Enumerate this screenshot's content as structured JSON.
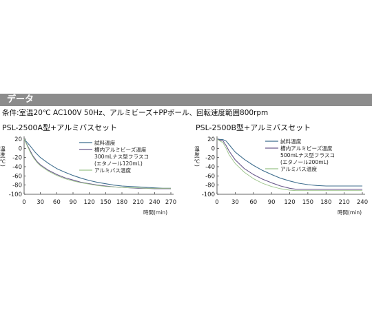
{
  "header": {
    "title": "データ"
  },
  "conditions_text": "条件:室温20℃ AC100V 50Hz、アルミビーズ+PPボール、回転速度範囲800rpm",
  "colors": {
    "header_bar": "#8c8c8c",
    "sample_temp": "#3f6e8e",
    "bead_temp": "#6b5a8c",
    "bath_temp": "#9bc489"
  },
  "chart_data": [
    {
      "type": "line",
      "title": "PSL-2500A型+アルミバスセット",
      "xlabel": "時間(min)",
      "ylabel": "温度(℃)",
      "xlim": [
        0,
        270
      ],
      "ylim": [
        -100,
        20
      ],
      "x_ticks": [
        0,
        30,
        60,
        90,
        120,
        150,
        180,
        210,
        240,
        270
      ],
      "y_ticks": [
        20,
        0,
        -20,
        -40,
        -60,
        -80,
        -100
      ],
      "grid": false,
      "legend_position": "top-right",
      "series": [
        {
          "name": "試料温度",
          "color_key": "sample_temp",
          "points": [
            [
              0,
              20
            ],
            [
              10,
              7
            ],
            [
              20,
              -8
            ],
            [
              30,
              -20
            ],
            [
              45,
              -33
            ],
            [
              60,
              -44
            ],
            [
              75,
              -52
            ],
            [
              90,
              -59
            ],
            [
              105,
              -65
            ],
            [
              120,
              -70
            ],
            [
              135,
              -74
            ],
            [
              150,
              -77
            ],
            [
              165,
              -80
            ],
            [
              180,
              -82
            ],
            [
              195,
              -83
            ],
            [
              210,
              -84
            ],
            [
              225,
              -85
            ],
            [
              240,
              -86
            ],
            [
              255,
              -87
            ],
            [
              270,
              -87
            ]
          ]
        },
        {
          "name": "槽内アルミビーズ温度",
          "color_key": "bead_temp",
          "points": [
            [
              0,
              20
            ],
            [
              8,
              2
            ],
            [
              16,
              -16
            ],
            [
              24,
              -29
            ],
            [
              30,
              -36
            ],
            [
              45,
              -48
            ],
            [
              60,
              -57
            ],
            [
              75,
              -64
            ],
            [
              90,
              -69
            ],
            [
              105,
              -74
            ],
            [
              120,
              -77
            ],
            [
              135,
              -80
            ],
            [
              150,
              -82
            ],
            [
              165,
              -84
            ],
            [
              180,
              -85
            ],
            [
              195,
              -86
            ],
            [
              210,
              -87
            ],
            [
              225,
              -87
            ],
            [
              240,
              -88
            ],
            [
              255,
              -88
            ],
            [
              270,
              -88
            ]
          ]
        },
        {
          "name": "アルミバス温度",
          "color_key": "bath_temp",
          "points": [
            [
              0,
              20
            ],
            [
              6,
              5
            ],
            [
              12,
              -10
            ],
            [
              18,
              -22
            ],
            [
              24,
              -31
            ],
            [
              30,
              -38
            ],
            [
              45,
              -50
            ],
            [
              60,
              -59
            ],
            [
              75,
              -66
            ],
            [
              90,
              -71
            ],
            [
              105,
              -75
            ],
            [
              120,
              -78
            ],
            [
              135,
              -81
            ],
            [
              150,
              -83
            ],
            [
              165,
              -84
            ],
            [
              180,
              -85
            ],
            [
              195,
              -86
            ],
            [
              210,
              -86
            ],
            [
              225,
              -87
            ],
            [
              240,
              -87
            ],
            [
              255,
              -87
            ],
            [
              270,
              -87
            ]
          ]
        }
      ],
      "legend_lines": [
        {
          "text": "試料温度",
          "color_key": "sample_temp"
        },
        {
          "text": "槽内アルミビーズ温度",
          "color_key": "bead_temp"
        },
        {
          "text": "300mLナス型フラスコ",
          "color_key": null
        },
        {
          "text": "(エタノール120mL)",
          "color_key": null
        },
        {
          "text": "アルミバス温度",
          "color_key": "bath_temp"
        }
      ]
    },
    {
      "type": "line",
      "title": "PSL-2500B型+アルミバスセット",
      "xlabel": "時間(min)",
      "ylabel": "温度(℃)",
      "xlim": [
        0,
        240
      ],
      "ylim": [
        -100,
        20
      ],
      "x_ticks": [
        0,
        30,
        60,
        90,
        120,
        150,
        180,
        210,
        240
      ],
      "y_ticks": [
        20,
        0,
        -20,
        -40,
        -60,
        -80,
        -100
      ],
      "grid": false,
      "legend_position": "top-right",
      "series": [
        {
          "name": "試料温度",
          "color_key": "sample_temp",
          "points": [
            [
              0,
              20
            ],
            [
              10,
              19
            ],
            [
              15,
              16
            ],
            [
              20,
              8
            ],
            [
              30,
              -8
            ],
            [
              45,
              -24
            ],
            [
              60,
              -37
            ],
            [
              75,
              -48
            ],
            [
              90,
              -57
            ],
            [
              105,
              -65
            ],
            [
              120,
              -71
            ],
            [
              135,
              -76
            ],
            [
              150,
              -79
            ],
            [
              165,
              -81
            ],
            [
              180,
              -82
            ],
            [
              195,
              -82
            ],
            [
              210,
              -82
            ],
            [
              225,
              -82
            ],
            [
              240,
              -82
            ]
          ]
        },
        {
          "name": "槽内アルミビーズ温度",
          "color_key": "bead_temp",
          "points": [
            [
              0,
              20
            ],
            [
              10,
              16
            ],
            [
              15,
              6
            ],
            [
              20,
              -6
            ],
            [
              30,
              -25
            ],
            [
              45,
              -44
            ],
            [
              60,
              -57
            ],
            [
              75,
              -67
            ],
            [
              90,
              -75
            ],
            [
              105,
              -82
            ],
            [
              120,
              -87
            ],
            [
              130,
              -89
            ],
            [
              150,
              -89
            ],
            [
              180,
              -89
            ],
            [
              210,
              -89
            ],
            [
              240,
              -89
            ]
          ]
        },
        {
          "name": "アルミバス温度",
          "color_key": "bath_temp",
          "points": [
            [
              0,
              20
            ],
            [
              10,
              12
            ],
            [
              15,
              0
            ],
            [
              20,
              -14
            ],
            [
              30,
              -33
            ],
            [
              45,
              -52
            ],
            [
              60,
              -66
            ],
            [
              75,
              -76
            ],
            [
              90,
              -83
            ],
            [
              105,
              -88
            ],
            [
              120,
              -91
            ],
            [
              130,
              -92
            ],
            [
              150,
              -92
            ],
            [
              180,
              -92
            ],
            [
              210,
              -92
            ],
            [
              240,
              -92
            ]
          ]
        }
      ],
      "legend_lines": [
        {
          "text": "試料温度",
          "color_key": "sample_temp"
        },
        {
          "text": "槽内アルミビーズ温度",
          "color_key": "bead_temp"
        },
        {
          "text": "500mLナス型フラスコ",
          "color_key": null
        },
        {
          "text": "(エタノール200mL)",
          "color_key": null
        },
        {
          "text": "アルミバス温度",
          "color_key": "bath_temp"
        }
      ]
    }
  ]
}
